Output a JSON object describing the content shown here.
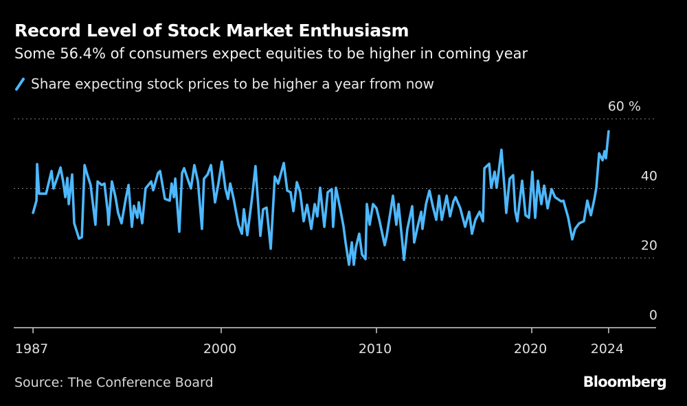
{
  "title": "Record Level of Stock Market Enthusiasm",
  "subtitle": "Some 56.4% of consumers expect equities to be higher in coming year",
  "source": "Source: The Conference Board",
  "logo": "Bloomberg",
  "chart_data": {
    "type": "line",
    "title": "Record Level of Stock Market Enthusiasm",
    "subtitle": "Some 56.4% of consumers expect equities to be higher in coming year",
    "ylim": [
      0,
      60
    ],
    "y_ticks": [
      {
        "value": 0,
        "label": "0"
      },
      {
        "value": 20,
        "label": "20"
      },
      {
        "value": 40,
        "label": "40"
      },
      {
        "value": 60,
        "label": "60 %"
      }
    ],
    "x_ticks": [
      {
        "value": 1987,
        "label": "1987"
      },
      {
        "value": 2000,
        "label": "2000"
      },
      {
        "value": 2010,
        "label": "2010"
      },
      {
        "value": 2020,
        "label": "2020"
      },
      {
        "value": 2024,
        "label": "2024"
      }
    ],
    "grid": "horizontal dotted",
    "legend_position": "top-left",
    "series": [
      {
        "name": "Share expecting stock prices to be higher a year from now",
        "color": "#4db8ff",
        "x": [
          1987.88,
          1988.1,
          1988.14,
          1988.27,
          1988.72,
          1989.07,
          1989.2,
          1989.51,
          1989.65,
          1989.82,
          1989.96,
          1990.09,
          1990.18,
          1990.4,
          1990.53,
          1990.84,
          1991.02,
          1991.2,
          1991.37,
          1991.59,
          1991.9,
          1992.04,
          1992.3,
          1992.48,
          1992.7,
          1992.74,
          1992.96,
          1993.19,
          1993.36,
          1993.58,
          1993.85,
          1994.03,
          1994.25,
          1994.38,
          1994.6,
          1994.69,
          1994.91,
          1995.13,
          1995.49,
          1995.62,
          1995.93,
          1996.06,
          1996.37,
          1996.68,
          1996.81,
          1996.95,
          1997.04,
          1997.3,
          1997.48,
          1997.61,
          1997.83,
          1998.05,
          1998.27,
          1998.5,
          1998.76,
          1998.89,
          1999.12,
          1999.34,
          1999.6,
          1999.82,
          2000.04,
          2000.27,
          2000.44,
          2000.58,
          2000.8,
          2001.11,
          2001.33,
          2001.46,
          2001.68,
          2001.99,
          2002.21,
          2002.35,
          2002.52,
          2002.7,
          2002.92,
          2003.19,
          2003.45,
          2003.67,
          2004.03,
          2004.25,
          2004.47,
          2004.65,
          2004.87,
          2005.09,
          2005.31,
          2005.53,
          2005.8,
          2006.02,
          2006.19,
          2006.37,
          2006.64,
          2006.86,
          2007.12,
          2007.21,
          2007.39,
          2007.66,
          2007.88,
          2008.01,
          2008.23,
          2008.41,
          2008.54,
          2008.67,
          2008.89,
          2009.07,
          2009.29,
          2009.38,
          2009.56,
          2009.78,
          2010.0,
          2010.18,
          2010.53,
          2010.66,
          2011.06,
          2011.28,
          2011.42,
          2011.64,
          2011.77,
          2011.99,
          2012.3,
          2012.43,
          2012.65,
          2012.88,
          2012.96,
          2013.19,
          2013.41,
          2013.63,
          2013.85,
          2014.03,
          2014.21,
          2014.52,
          2014.74,
          2014.96,
          2015.09,
          2015.4,
          2015.71,
          2015.97,
          2016.15,
          2016.37,
          2016.64,
          2016.86,
          2016.95,
          2017.26,
          2017.39,
          2017.61,
          2017.74,
          2018.05,
          2018.27,
          2018.36,
          2018.58,
          2018.8,
          2018.94,
          2019.07,
          2019.38,
          2019.6,
          2019.82,
          2020.04,
          2020.22,
          2020.4,
          2020.62,
          2020.8,
          2021.02,
          2021.28,
          2021.5,
          2021.9,
          2022.04,
          2022.35,
          2022.61,
          2022.79,
          2023.06,
          2023.36,
          2023.58,
          2023.81,
          2024.03,
          2024.16,
          2024.34,
          2024.56,
          2024.69,
          2024.78,
          2024.95
        ],
        "values": [
          33,
          36.5,
          47,
          38.5,
          38.5,
          45,
          40,
          44,
          46,
          42,
          37.5,
          43,
          35.5,
          44,
          30,
          25.6,
          26,
          46.7,
          44,
          41,
          29.6,
          42,
          41,
          41.4,
          33,
          29.6,
          42,
          37.5,
          33,
          30,
          37,
          41,
          29,
          35,
          31.6,
          36,
          30,
          40,
          42,
          39.5,
          44.4,
          45,
          37,
          36.5,
          41.4,
          37.5,
          42.8,
          27.6,
          44.4,
          45.8,
          42.8,
          40,
          46.7,
          42,
          28.4,
          42.8,
          44,
          46.7,
          36,
          41.4,
          47.7,
          40,
          37,
          41.4,
          37,
          29.6,
          27,
          34,
          26.6,
          37.5,
          46.4,
          37.5,
          26.4,
          34,
          34.5,
          22.7,
          43.4,
          41.4,
          47.3,
          39.4,
          38.9,
          33.5,
          41.8,
          38.9,
          30.6,
          35.3,
          28.4,
          35.5,
          32,
          40.2,
          29,
          38.9,
          39.8,
          29,
          40.2,
          34.3,
          29,
          24.5,
          18.1,
          24.5,
          18.1,
          23,
          27,
          21,
          19.7,
          35.5,
          29.6,
          35.5,
          34.3,
          31,
          23.7,
          26.4,
          37.9,
          29.6,
          35.5,
          25.6,
          19.5,
          28.4,
          34.9,
          24.5,
          29,
          33.3,
          28.4,
          35.5,
          39.4,
          34.9,
          31,
          37.9,
          31,
          37.9,
          32,
          36.3,
          37.5,
          34.3,
          29,
          33.3,
          27,
          31,
          33.3,
          30.6,
          45.8,
          47.1,
          40.2,
          44.8,
          40.2,
          51.1,
          38.9,
          33,
          42.8,
          43.8,
          33.5,
          30.6,
          42.2,
          32.3,
          31.6,
          44.8,
          31.6,
          42.2,
          35.5,
          40.8,
          34.3,
          39.8,
          37.5,
          36.3,
          36.5,
          31.6,
          25.4,
          28.4,
          30,
          30.6,
          36.5,
          32.3,
          36.9,
          40.2,
          50.1,
          48.1,
          50.7,
          48.7,
          56.4
        ]
      }
    ]
  }
}
